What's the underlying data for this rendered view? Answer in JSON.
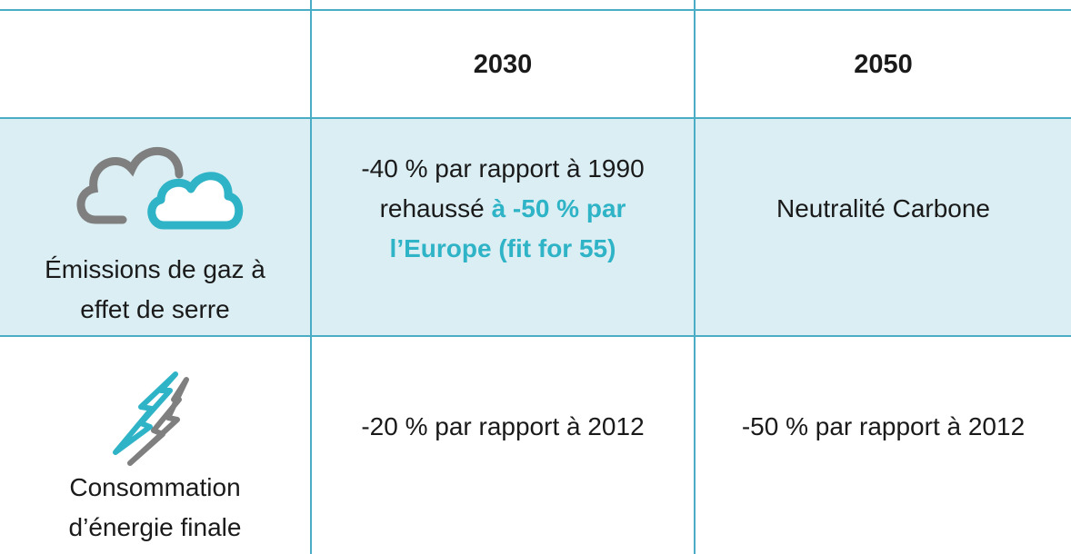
{
  "table": {
    "header": [
      "2030",
      "2050"
    ],
    "rows": [
      {
        "label": [
          "Émissions de gaz à",
          "effet de serre"
        ],
        "cells": [
          [
            [
              {
                "text": "-40 % par rapport à 1990"
              }
            ],
            [
              {
                "text": "rehaussé"
              },
              {
                "text": "à -50 % par",
                "highlight": true
              }
            ],
            [
              {
                "text": "l’Europe (fit for 55)",
                "highlight": true
              }
            ]
          ],
          [
            [
              {
                "text": "Neutralité Carbone"
              }
            ]
          ]
        ]
      },
      {
        "label": [
          "Consommation",
          "d’énergie finale"
        ],
        "cells": [
          [
            [
              {
                "text": "-20 % par rapport à 2012"
              }
            ]
          ],
          [
            [
              {
                "text": "-50 % par rapport à 2012"
              }
            ]
          ]
        ]
      }
    ]
  }
}
